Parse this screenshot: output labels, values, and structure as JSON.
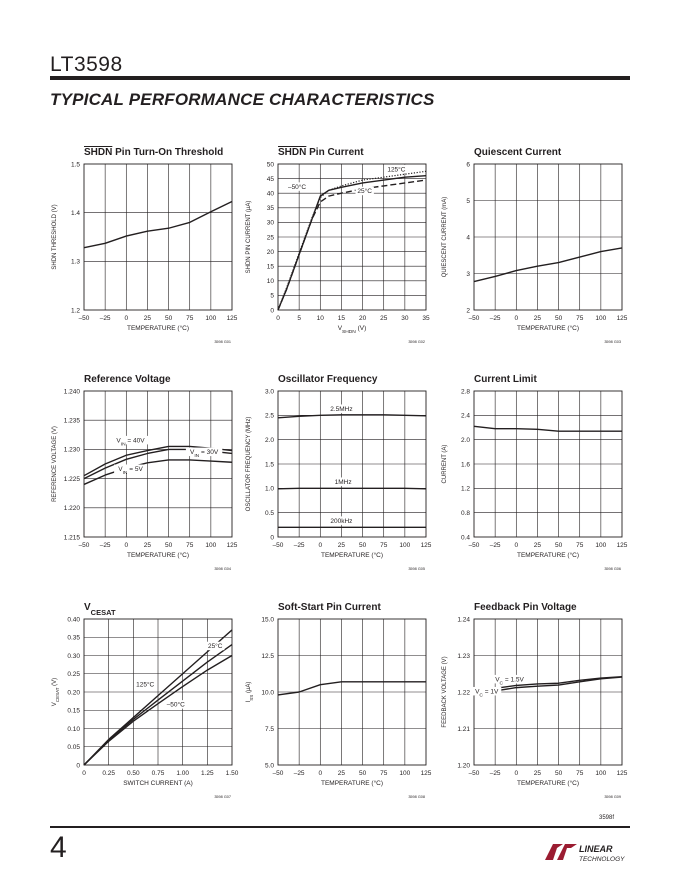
{
  "header": {
    "part_number": "LT3598",
    "section_title": "TYPICAL PERFORMANCE CHARACTERISTICS"
  },
  "footer": {
    "page_number": "4",
    "doc_id": "3598f",
    "logo_text": "LINEAR TECHNOLOGY"
  },
  "chart_data": [
    {
      "type": "line",
      "title": "SHDN Pin Turn-On Threshold",
      "title_overbar": "SHDN",
      "xlabel": "TEMPERATURE (°C)",
      "ylabel": "SHDN THRESHOLD (V)",
      "ylabel_overbar": "SHDN",
      "xlim": [
        -50,
        125
      ],
      "ylim": [
        1.2,
        1.5
      ],
      "xticks": [
        -50,
        -25,
        0,
        25,
        50,
        75,
        100,
        125
      ],
      "xtick_labels": [
        "–50",
        "–25",
        "0",
        "25",
        "50",
        "75",
        "100",
        "125"
      ],
      "yticks": [
        1.2,
        1.3,
        1.4,
        1.5
      ],
      "ytick_labels": [
        "1.2",
        "1.3",
        "1.4",
        "1.5"
      ],
      "code": "3598 G01",
      "series": [
        {
          "style": "solid",
          "x": [
            -50,
            -25,
            0,
            25,
            50,
            75,
            100,
            125
          ],
          "y": [
            1.328,
            1.337,
            1.352,
            1.362,
            1.368,
            1.38,
            1.402,
            1.423
          ]
        }
      ],
      "annotations": []
    },
    {
      "type": "line",
      "title": "SHDN Pin Current",
      "title_overbar": "SHDN",
      "xlabel": "VSHDN (V)",
      "xlabel_sub": "SHDN",
      "ylabel": "SHDN PIN CURRENT (µA)",
      "ylabel_overbar": "SHDN",
      "xlim": [
        0,
        35
      ],
      "ylim": [
        0,
        50
      ],
      "xticks": [
        0,
        5,
        10,
        15,
        20,
        25,
        30,
        35
      ],
      "xtick_labels": [
        "0",
        "5",
        "10",
        "15",
        "20",
        "25",
        "30",
        "35"
      ],
      "yticks": [
        0,
        5,
        10,
        15,
        20,
        25,
        30,
        35,
        40,
        45,
        50
      ],
      "ytick_labels": [
        "0",
        "5",
        "10",
        "15",
        "20",
        "25",
        "30",
        "35",
        "40",
        "45",
        "50"
      ],
      "code": "3598 G02",
      "series": [
        {
          "name": "–50°C",
          "style": "solid",
          "x": [
            0,
            1,
            2,
            3,
            4,
            5,
            6,
            7,
            8,
            9,
            10,
            12,
            15,
            20,
            25,
            30,
            35
          ],
          "y": [
            0,
            3.5,
            7,
            11,
            15,
            19,
            23,
            27,
            31,
            35,
            39,
            41,
            42,
            43.5,
            44.5,
            45.5,
            46
          ]
        },
        {
          "name": "25°C",
          "style": "dashed",
          "x": [
            0,
            1,
            2,
            3,
            4,
            5,
            6,
            7,
            8,
            9,
            10,
            12,
            15,
            20,
            25,
            30,
            35
          ],
          "y": [
            0,
            3.5,
            7,
            11,
            15,
            19,
            23,
            27,
            31,
            34,
            37,
            39,
            40,
            41.5,
            42.5,
            43.5,
            44.5
          ]
        },
        {
          "name": "125°C",
          "style": "dotted",
          "x": [
            0,
            1,
            2,
            3,
            4,
            5,
            6,
            7,
            8,
            9,
            10,
            12,
            15,
            20,
            25,
            30,
            35
          ],
          "y": [
            0,
            3.8,
            7.5,
            11.5,
            15.5,
            19.5,
            23.5,
            27.5,
            31.5,
            35,
            38.5,
            41,
            42.5,
            44.5,
            45.5,
            46.5,
            47.5
          ]
        }
      ],
      "annotations": [
        {
          "text": "125°C",
          "x": 28,
          "y": 47.5
        },
        {
          "text": "–50°C",
          "x": 4.5,
          "y": 41.5
        },
        {
          "text": "25°C",
          "x": 20.5,
          "y": 40
        }
      ]
    },
    {
      "type": "line",
      "title": "Quiescent Current",
      "xlabel": "TEMPERATURE (°C)",
      "ylabel": "QUIESCENT CURRENT (mA)",
      "xlim": [
        -50,
        125
      ],
      "ylim": [
        2,
        6
      ],
      "xticks": [
        -50,
        -25,
        0,
        25,
        50,
        75,
        100,
        125
      ],
      "xtick_labels": [
        "–50",
        "–25",
        "0",
        "25",
        "50",
        "75",
        "100",
        "125"
      ],
      "yticks": [
        2,
        3,
        4,
        5,
        6
      ],
      "ytick_labels": [
        "2",
        "3",
        "4",
        "5",
        "6"
      ],
      "code": "3598 G03",
      "series": [
        {
          "style": "solid",
          "x": [
            -50,
            -25,
            0,
            25,
            50,
            75,
            100,
            125
          ],
          "y": [
            2.78,
            2.92,
            3.08,
            3.2,
            3.3,
            3.45,
            3.6,
            3.7
          ]
        }
      ],
      "annotations": []
    },
    {
      "type": "line",
      "title": "Reference Voltage",
      "xlabel": "TEMPERATURE (°C)",
      "ylabel": "REFERENCE VOLTAGE (V)",
      "xlim": [
        -50,
        125
      ],
      "ylim": [
        1.215,
        1.24
      ],
      "xticks": [
        -50,
        -25,
        0,
        25,
        50,
        75,
        100,
        125
      ],
      "xtick_labels": [
        "–50",
        "–25",
        "0",
        "25",
        "50",
        "75",
        "100",
        "125"
      ],
      "yticks": [
        1.215,
        1.22,
        1.225,
        1.23,
        1.235,
        1.24
      ],
      "ytick_labels": [
        "1.215",
        "1.220",
        "1.225",
        "1.230",
        "1.235",
        "1.240"
      ],
      "code": "3598 G04",
      "series": [
        {
          "name": "VIN = 40V",
          "style": "solid",
          "x": [
            -50,
            -25,
            0,
            25,
            50,
            75,
            100,
            125
          ],
          "y": [
            1.2255,
            1.2275,
            1.229,
            1.2298,
            1.2305,
            1.2305,
            1.2302,
            1.2298
          ]
        },
        {
          "name": "VIN = 30V",
          "style": "solid",
          "x": [
            -50,
            -25,
            0,
            25,
            50,
            75,
            100,
            125
          ],
          "y": [
            1.225,
            1.2268,
            1.2283,
            1.2293,
            1.23,
            1.23,
            1.2297,
            1.2293
          ]
        },
        {
          "name": "VIN = 5V",
          "style": "solid",
          "x": [
            -50,
            -25,
            0,
            25,
            50,
            75,
            100,
            125
          ],
          "y": [
            1.224,
            1.2256,
            1.2268,
            1.2277,
            1.2282,
            1.2282,
            1.228,
            1.2278
          ]
        }
      ],
      "annotations": [
        {
          "text": "VIN = 40V",
          "x": 5,
          "y": 1.2312
        },
        {
          "text": "VIN = 30V",
          "x": 92,
          "y": 1.2292
        },
        {
          "text": "VIN = 5V",
          "x": 5,
          "y": 1.2263
        }
      ]
    },
    {
      "type": "line",
      "title": "Oscillator Frequency",
      "xlabel": "TEMPERATURE (°C)",
      "ylabel": "OSCILLATOR FREQUENCY (MHz)",
      "xlim": [
        -50,
        125
      ],
      "ylim": [
        0,
        3.0
      ],
      "xticks": [
        -50,
        -25,
        0,
        25,
        50,
        75,
        100,
        125
      ],
      "xtick_labels": [
        "–50",
        "–25",
        "0",
        "25",
        "50",
        "75",
        "100",
        "125"
      ],
      "yticks": [
        0,
        0.5,
        1.0,
        1.5,
        2.0,
        2.5,
        3.0
      ],
      "ytick_labels": [
        "0",
        "0.5",
        "1.0",
        "1.5",
        "2.0",
        "2.5",
        "3.0"
      ],
      "code": "3598 G05",
      "series": [
        {
          "name": "2.5MHz",
          "style": "solid",
          "x": [
            -50,
            -25,
            0,
            25,
            50,
            75,
            100,
            125
          ],
          "y": [
            2.45,
            2.48,
            2.5,
            2.51,
            2.51,
            2.51,
            2.5,
            2.49
          ]
        },
        {
          "name": "1MHz",
          "style": "solid",
          "x": [
            -50,
            -25,
            0,
            25,
            50,
            75,
            100,
            125
          ],
          "y": [
            0.99,
            1.0,
            1.0,
            1.0,
            1.0,
            1.0,
            1.0,
            0.99
          ]
        },
        {
          "name": "200kHz",
          "style": "solid",
          "x": [
            -50,
            -25,
            0,
            25,
            50,
            75,
            100,
            125
          ],
          "y": [
            0.2,
            0.2,
            0.2,
            0.2,
            0.2,
            0.2,
            0.2,
            0.2
          ]
        }
      ],
      "annotations": [
        {
          "text": "2.5MHz",
          "x": 25,
          "y": 2.59
        },
        {
          "text": "1MHz",
          "x": 27,
          "y": 1.09
        },
        {
          "text": "200kHz",
          "x": 25,
          "y": 0.29
        }
      ]
    },
    {
      "type": "line",
      "title": "Current Limit",
      "xlabel": "TEMPERATURE (°C)",
      "ylabel": "CURRENT (A)",
      "xlim": [
        -50,
        125
      ],
      "ylim": [
        0.4,
        2.8
      ],
      "xticks": [
        -50,
        -25,
        0,
        25,
        50,
        75,
        100,
        125
      ],
      "xtick_labels": [
        "–50",
        "–25",
        "0",
        "25",
        "50",
        "75",
        "100",
        "125"
      ],
      "yticks": [
        0.4,
        0.8,
        1.2,
        1.6,
        2.0,
        2.4,
        2.8
      ],
      "ytick_labels": [
        "0.4",
        "0.8",
        "1.2",
        "1.6",
        "2.0",
        "2.4",
        "2.8"
      ],
      "code": "3598 G06",
      "series": [
        {
          "style": "solid",
          "x": [
            -50,
            -25,
            0,
            25,
            50,
            75,
            100,
            125
          ],
          "y": [
            2.22,
            2.18,
            2.18,
            2.17,
            2.14,
            2.14,
            2.14,
            2.14
          ]
        }
      ],
      "annotations": []
    },
    {
      "type": "line",
      "title": "VCESAT",
      "title_sub": "CESAT",
      "xlabel": "SWITCH CURRENT (A)",
      "ylabel": "VCESAT (V)",
      "ylabel_sub": "CESAT",
      "xlim": [
        0,
        1.5
      ],
      "ylim": [
        0,
        0.4
      ],
      "xticks": [
        0,
        0.25,
        0.5,
        0.75,
        1.0,
        1.25,
        1.5
      ],
      "xtick_labels": [
        "0",
        "0.25",
        "0.50",
        "0.75",
        "1.00",
        "1.25",
        "1.50"
      ],
      "yticks": [
        0,
        0.05,
        0.1,
        0.15,
        0.2,
        0.25,
        0.3,
        0.35,
        0.4
      ],
      "ytick_labels": [
        "0",
        "0.05",
        "0.10",
        "0.15",
        "0.20",
        "0.25",
        "0.30",
        "0.35",
        "0.40"
      ],
      "code": "3598 G07",
      "series": [
        {
          "name": "125°C",
          "style": "solid",
          "x": [
            0,
            0.25,
            0.5,
            0.75,
            1.0,
            1.25,
            1.5
          ],
          "y": [
            0,
            0.07,
            0.13,
            0.19,
            0.25,
            0.31,
            0.37
          ]
        },
        {
          "name": "25°C",
          "style": "solid",
          "x": [
            0,
            0.25,
            0.5,
            0.75,
            1.0,
            1.25,
            1.5
          ],
          "y": [
            0,
            0.068,
            0.125,
            0.178,
            0.23,
            0.282,
            0.33
          ]
        },
        {
          "name": "–50°C",
          "style": "solid",
          "x": [
            0,
            0.25,
            0.5,
            0.75,
            1.0,
            1.25,
            1.5
          ],
          "y": [
            0,
            0.065,
            0.12,
            0.168,
            0.215,
            0.26,
            0.3
          ]
        }
      ],
      "annotations": [
        {
          "text": "125°C",
          "x": 0.62,
          "y": 0.215
        },
        {
          "text": "25°C",
          "x": 1.33,
          "y": 0.32
        },
        {
          "text": "–50°C",
          "x": 0.93,
          "y": 0.16
        }
      ]
    },
    {
      "type": "line",
      "title": "Soft-Start Pin Current",
      "xlabel": "TEMPERATURE (°C)",
      "ylabel": "ISS (µA)",
      "ylabel_sub": "SS",
      "xlim": [
        -50,
        125
      ],
      "ylim": [
        5.0,
        15.0
      ],
      "xticks": [
        -50,
        -25,
        0,
        25,
        50,
        75,
        100,
        125
      ],
      "xtick_labels": [
        "–50",
        "–25",
        "0",
        "25",
        "50",
        "75",
        "100",
        "125"
      ],
      "yticks": [
        5.0,
        7.5,
        10.0,
        12.5,
        15.0
      ],
      "ytick_labels": [
        "5.0",
        "7.5",
        "10.0",
        "12.5",
        "15.0"
      ],
      "code": "3598 G08",
      "series": [
        {
          "style": "solid",
          "x": [
            -50,
            -25,
            0,
            25,
            50,
            75,
            100,
            125
          ],
          "y": [
            9.8,
            10.0,
            10.5,
            10.7,
            10.7,
            10.7,
            10.7,
            10.7
          ]
        }
      ],
      "annotations": []
    },
    {
      "type": "line",
      "title": "Feedback Pin Voltage",
      "xlabel": "TEMPERATURE (°C)",
      "ylabel": "FEEDBACK VOLTAGE (V)",
      "xlim": [
        -50,
        125
      ],
      "ylim": [
        1.2,
        1.24
      ],
      "xticks": [
        -50,
        -25,
        0,
        25,
        50,
        75,
        100,
        125
      ],
      "xtick_labels": [
        "–50",
        "–25",
        "0",
        "25",
        "50",
        "75",
        "100",
        "125"
      ],
      "yticks": [
        1.2,
        1.21,
        1.22,
        1.23,
        1.24
      ],
      "ytick_labels": [
        "1.20",
        "1.21",
        "1.22",
        "1.23",
        "1.24"
      ],
      "code": "3598 G09",
      "series": [
        {
          "name": "VC = 1.5V",
          "style": "solid",
          "x": [
            -50,
            -25,
            0,
            25,
            50,
            75,
            100,
            125
          ],
          "y": [
            1.2198,
            1.221,
            1.2218,
            1.2222,
            1.2224,
            1.2232,
            1.2238,
            1.2242
          ]
        },
        {
          "name": "VC = 1V",
          "style": "solid",
          "x": [
            -50,
            -25,
            0,
            25,
            50,
            75,
            100,
            125
          ],
          "y": [
            1.2192,
            1.2203,
            1.2212,
            1.2216,
            1.2219,
            1.2228,
            1.2236,
            1.2241
          ]
        }
      ],
      "annotations": [
        {
          "text": "VC = 1.5V",
          "x": -8,
          "y": 1.2229
        },
        {
          "text": "VC = 1V",
          "x": -35,
          "y": 1.2196
        }
      ]
    }
  ]
}
